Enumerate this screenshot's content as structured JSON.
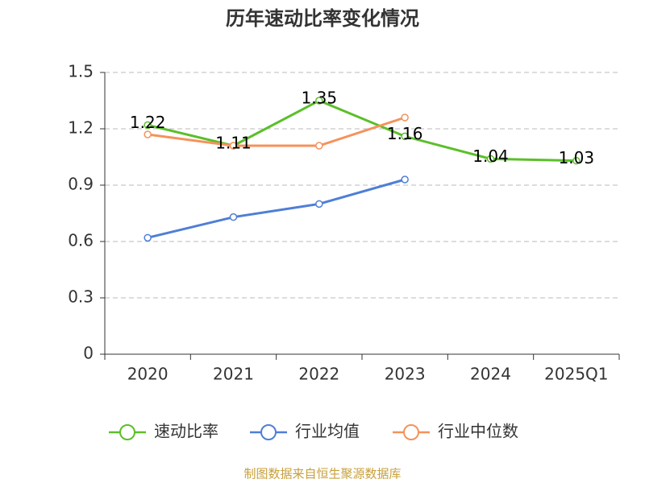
{
  "chart_data": {
    "type": "line",
    "title": "历年速动比率变化情况",
    "categories": [
      "2020",
      "2021",
      "2022",
      "2023",
      "2024",
      "2025Q1"
    ],
    "series": [
      {
        "name": "速动比率",
        "color": "#5bbf2a",
        "values": [
          1.22,
          1.11,
          1.35,
          1.16,
          1.04,
          1.03
        ],
        "show_labels": true
      },
      {
        "name": "行业均值",
        "color": "#4e7fd6",
        "values": [
          0.62,
          0.73,
          0.8,
          0.93,
          null,
          null
        ]
      },
      {
        "name": "行业中位数",
        "color": "#f5925b",
        "values": [
          1.17,
          1.11,
          1.11,
          1.26,
          null,
          null
        ]
      }
    ],
    "ylim": [
      0,
      1.5
    ],
    "yticks": [
      0,
      0.3,
      0.6,
      0.9,
      1.2,
      1.5
    ],
    "grid": true,
    "source": "制图数据来自恒生聚源数据库"
  }
}
